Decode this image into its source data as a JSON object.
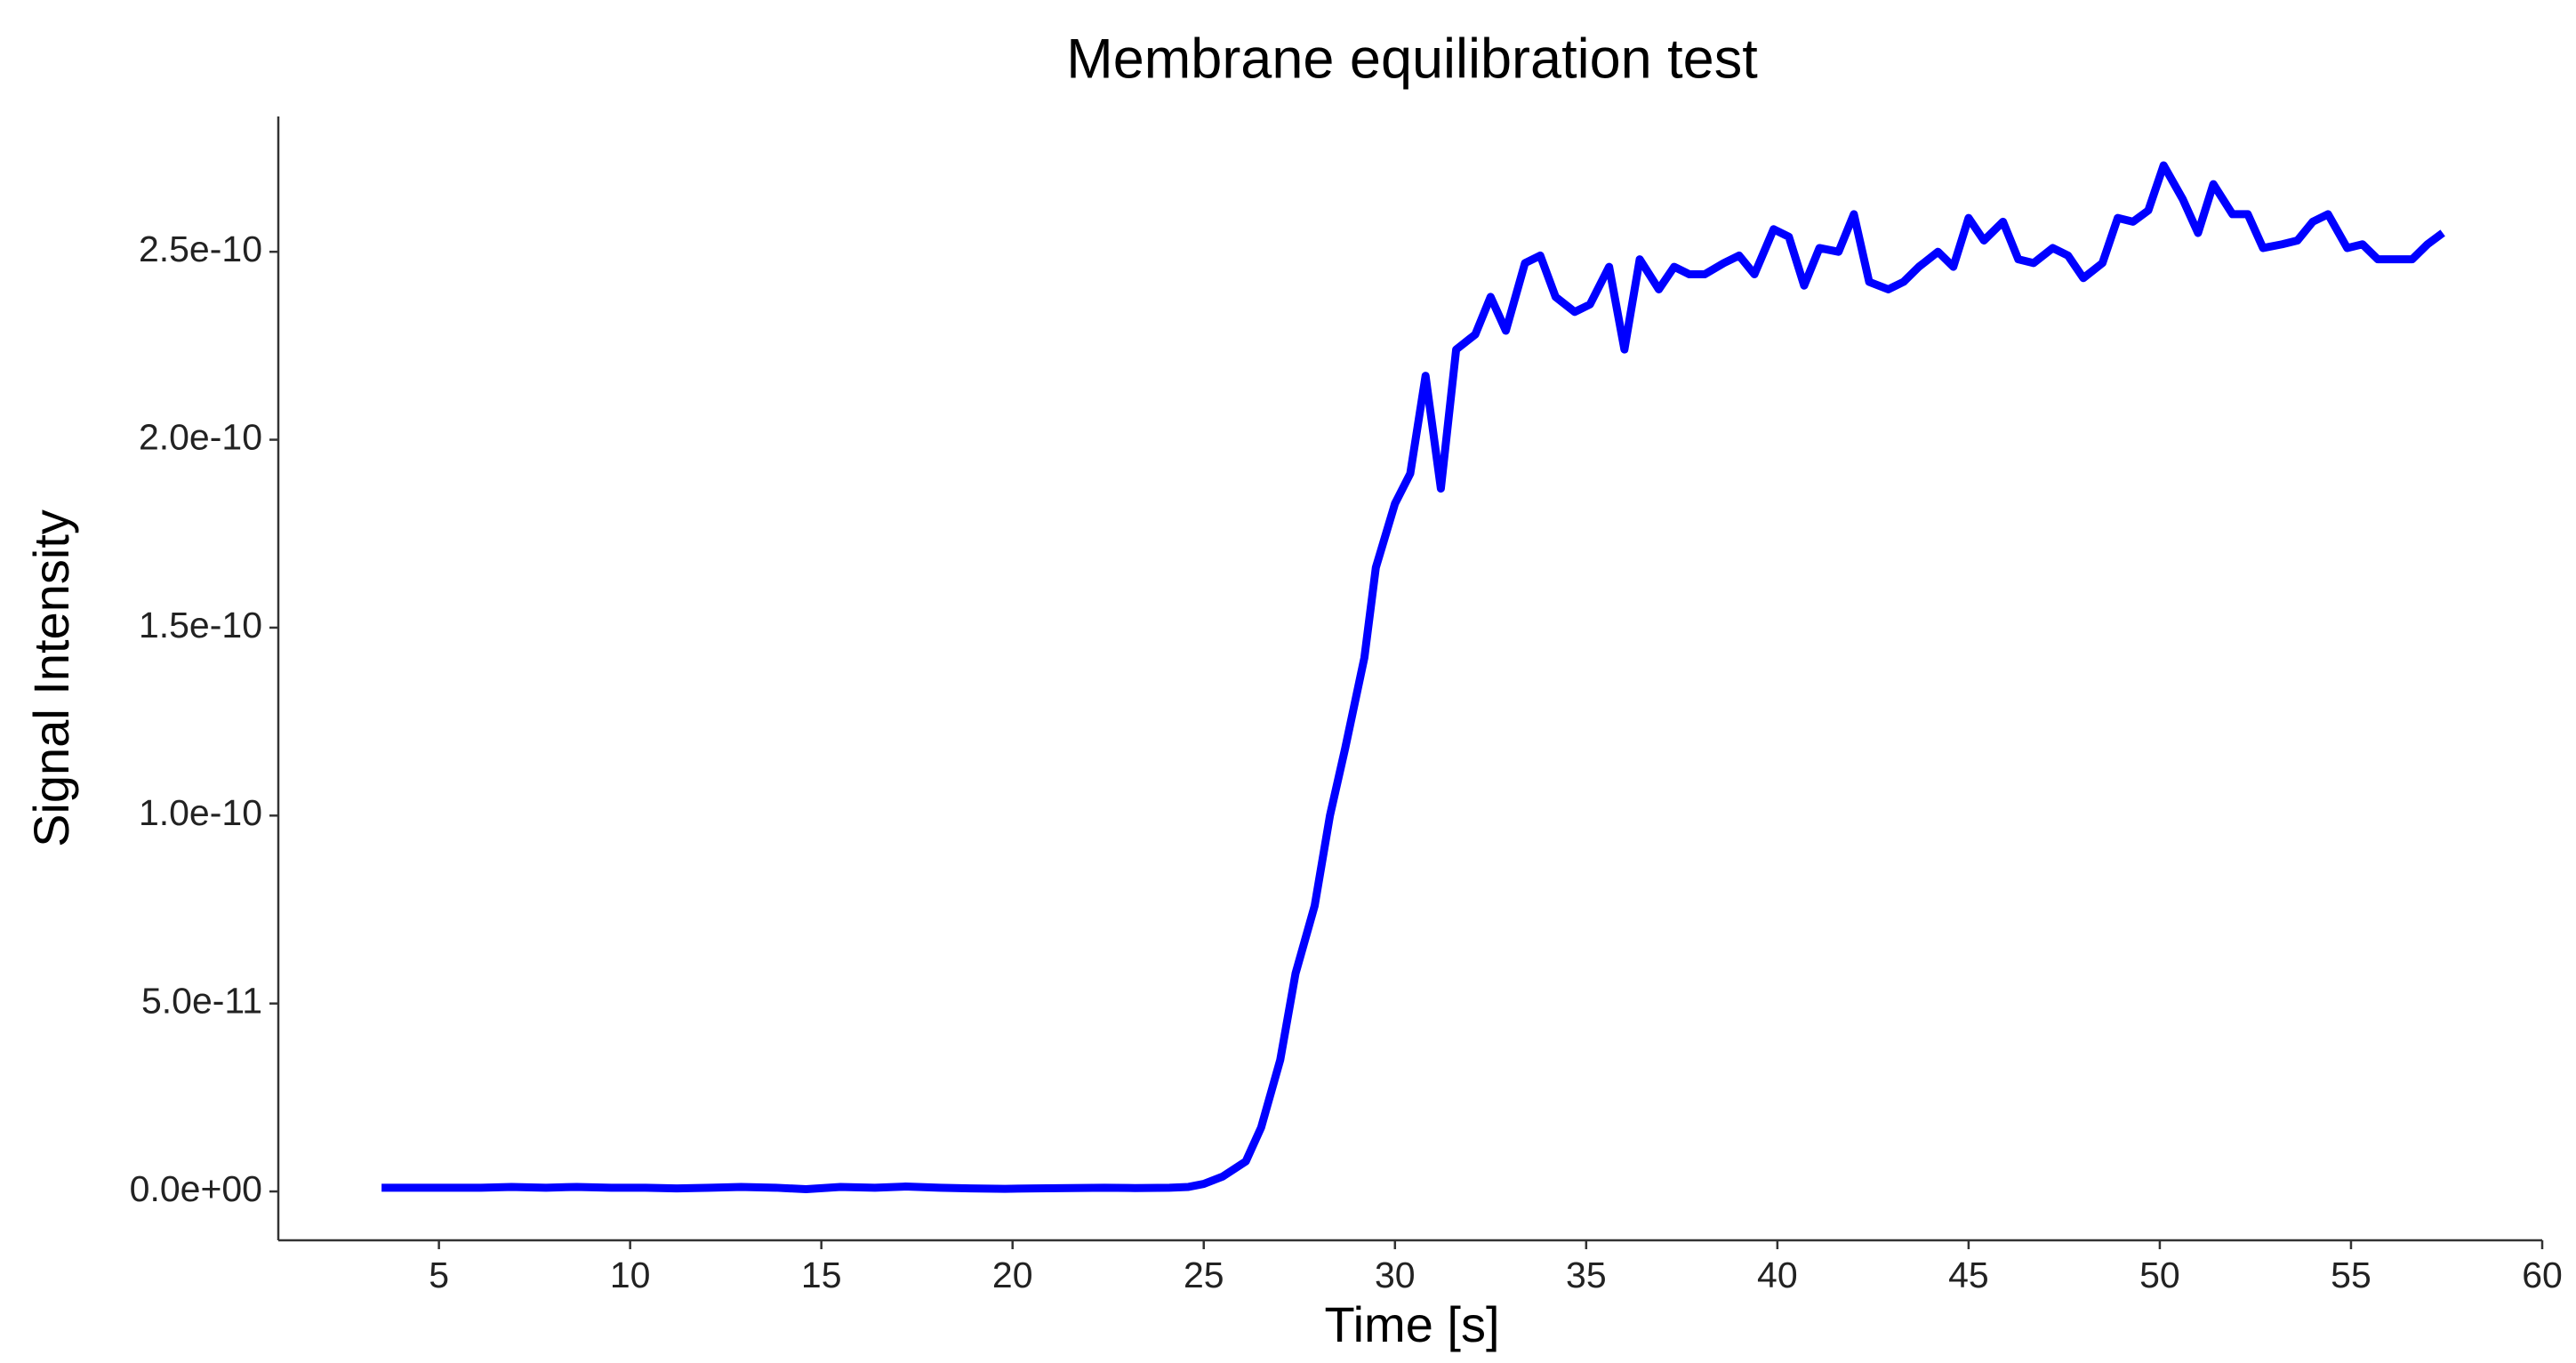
{
  "chart_data": {
    "type": "line",
    "title": "Membrane equilibration test",
    "x_label": "Time [s]",
    "y_label": "Signal Intensity",
    "xlim": [
      0.8,
      60.0
    ],
    "ylim": [
      -1.3e-11,
      2.86e-10
    ],
    "xticks": [
      5,
      10,
      15,
      20,
      25,
      30,
      35,
      40,
      45,
      50,
      55,
      60
    ],
    "yticks": [
      {
        "value": 0,
        "label": "0.0e+00"
      },
      {
        "value": 5e-11,
        "label": "5.0e-11"
      },
      {
        "value": 1e-10,
        "label": "1.0e-10"
      },
      {
        "value": 1.5e-10,
        "label": "1.5e-10"
      },
      {
        "value": 2e-10,
        "label": "2.0e-10"
      },
      {
        "value": 2.5e-10,
        "label": "2.5e-10"
      }
    ],
    "grid": false,
    "series": [
      {
        "name": "Signal",
        "color": "#0000ff",
        "x": [
          3.5,
          4.4,
          5.2,
          6.1,
          6.9,
          7.8,
          8.6,
          9.5,
          10.4,
          11.2,
          12.1,
          12.9,
          13.8,
          14.6,
          15.5,
          16.4,
          17.2,
          18.1,
          18.9,
          19.8,
          20.6,
          21.5,
          22.4,
          23.2,
          24.1,
          24.6,
          25.0,
          25.5,
          26.1,
          26.5,
          27.0,
          27.4,
          27.9,
          28.3,
          28.7,
          29.2,
          29.5,
          30.0,
          30.4,
          30.8,
          31.2,
          31.6,
          32.1,
          32.5,
          32.9,
          33.4,
          33.8,
          34.2,
          34.7,
          35.1,
          35.6,
          36.0,
          36.4,
          36.9,
          37.3,
          37.7,
          38.1,
          38.6,
          39.0,
          39.4,
          39.9,
          40.3,
          40.7,
          41.1,
          41.6,
          42.0,
          42.4,
          42.9,
          43.3,
          43.7,
          44.2,
          44.6,
          45.0,
          45.4,
          45.9,
          46.3,
          46.7,
          47.2,
          47.6,
          48.0,
          48.5,
          48.9,
          49.3,
          49.7,
          50.1,
          50.6,
          51.0,
          51.4,
          51.9,
          52.3,
          52.7,
          53.2,
          53.6,
          54.0,
          54.4,
          54.9,
          55.3,
          55.7,
          56.2,
          56.6,
          57.0,
          57.4
        ],
        "values": [
          1e-12,
          1e-12,
          1e-12,
          1e-12,
          1.2e-12,
          1e-12,
          1.2e-12,
          1e-12,
          1e-12,
          8e-13,
          1e-12,
          1.2e-12,
          1e-12,
          6e-13,
          1.2e-12,
          1e-12,
          1.3e-12,
          1e-12,
          8e-13,
          7e-13,
          8e-13,
          9e-13,
          1e-12,
          9e-13,
          1e-12,
          1.2e-12,
          2e-12,
          4e-12,
          8e-12,
          1.7e-11,
          3.5e-11,
          5.8e-11,
          7.6e-11,
          1e-10,
          1.18e-10,
          1.42e-10,
          1.66e-10,
          1.83e-10,
          1.91e-10,
          2.17e-10,
          1.87e-10,
          2.24e-10,
          2.28e-10,
          2.38e-10,
          2.29e-10,
          2.47e-10,
          2.49e-10,
          2.38e-10,
          2.34e-10,
          2.36e-10,
          2.46e-10,
          2.24e-10,
          2.48e-10,
          2.4e-10,
          2.46e-10,
          2.44e-10,
          2.44e-10,
          2.47e-10,
          2.49e-10,
          2.44e-10,
          2.56e-10,
          2.54e-10,
          2.41e-10,
          2.51e-10,
          2.5e-10,
          2.6e-10,
          2.42e-10,
          2.4e-10,
          2.42e-10,
          2.46e-10,
          2.5e-10,
          2.46e-10,
          2.59e-10,
          2.53e-10,
          2.58e-10,
          2.48e-10,
          2.47e-10,
          2.51e-10,
          2.49e-10,
          2.43e-10,
          2.47e-10,
          2.59e-10,
          2.58e-10,
          2.61e-10,
          2.73e-10,
          2.64e-10,
          2.55e-10,
          2.68e-10,
          2.6e-10,
          2.6e-10,
          2.51e-10,
          2.52e-10,
          2.53e-10,
          2.58e-10,
          2.6e-10,
          2.51e-10,
          2.52e-10,
          2.48e-10,
          2.48e-10,
          2.48e-10,
          2.52e-10,
          2.55e-10
        ]
      }
    ]
  }
}
